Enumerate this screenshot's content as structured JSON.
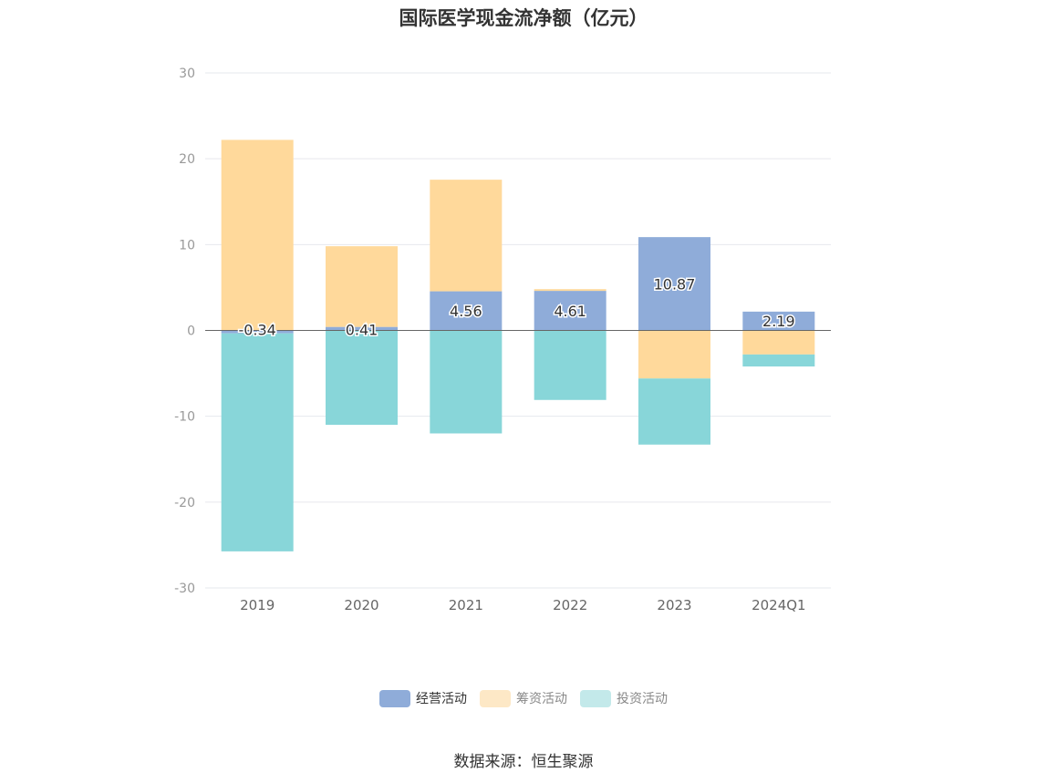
{
  "chart_data": {
    "type": "bar",
    "stacked": true,
    "title": "国际医学现金流净额（亿元）",
    "categories": [
      "2019",
      "2020",
      "2021",
      "2022",
      "2023",
      "2024Q1"
    ],
    "ylim": [
      -30,
      30
    ],
    "yticks": [
      30,
      20,
      10,
      0,
      -10,
      -20,
      -30
    ],
    "grid": true,
    "legend_position": "bottom",
    "series": [
      {
        "name": "经营活动",
        "color": "#8facd9",
        "values": [
          -0.34,
          0.41,
          4.56,
          4.61,
          10.87,
          2.19
        ],
        "labels": [
          "-0.34",
          "0.41",
          "4.56",
          "4.61",
          "10.87",
          "2.19"
        ]
      },
      {
        "name": "筹资活动",
        "color": "#ffd99b",
        "values": [
          22.2,
          9.4,
          13.0,
          0.2,
          -5.6,
          -2.8
        ],
        "labels": []
      },
      {
        "name": "投资活动",
        "color": "#88d6d9",
        "values": [
          -25.4,
          -11.0,
          -12.0,
          -8.1,
          -7.7,
          -1.4
        ],
        "labels": []
      }
    ],
    "legend": [
      {
        "name": "经营活动",
        "swatch": "#8facd9",
        "text_color": "#333333"
      },
      {
        "name": "筹资活动",
        "swatch": "#fde8c6",
        "text_color": "#888888"
      },
      {
        "name": "投资活动",
        "swatch": "#c3e9ea",
        "text_color": "#888888"
      }
    ]
  },
  "source": "数据来源：恒生聚源"
}
